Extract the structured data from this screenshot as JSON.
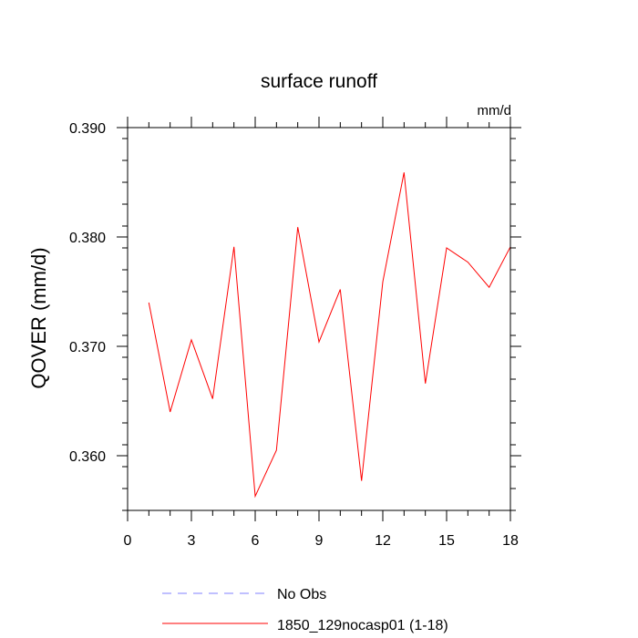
{
  "chart_data": {
    "type": "line",
    "title": "surface runoff",
    "units": "mm/d",
    "xlabel": "",
    "ylabel": "QOVER  (mm/d)",
    "xlim": [
      0,
      18
    ],
    "ylim": [
      0.355,
      0.39
    ],
    "x_ticks": [
      0,
      3,
      6,
      9,
      12,
      15,
      18
    ],
    "x_tick_labels": [
      "0",
      "3",
      "6",
      "9",
      "12",
      "15",
      "18"
    ],
    "y_ticks": [
      0.36,
      0.37,
      0.38,
      0.39
    ],
    "y_tick_labels": [
      "0.360",
      "0.370",
      "0.380",
      "0.390"
    ],
    "grid": false,
    "legend_position": "bottom",
    "series": [
      {
        "name": "No Obs",
        "color": "#8080ff",
        "style": "dashed",
        "x": [],
        "values": []
      },
      {
        "name": "1850_129nocasp01 (1-18)",
        "color": "#ff0000",
        "style": "solid",
        "x": [
          1,
          2,
          3,
          4,
          5,
          6,
          7,
          8,
          9,
          10,
          11,
          12,
          13,
          14,
          15,
          16,
          17,
          18
        ],
        "values": [
          0.374,
          0.364,
          0.3706,
          0.3652,
          0.3791,
          0.3563,
          0.3605,
          0.3809,
          0.3704,
          0.3752,
          0.3577,
          0.3759,
          0.3859,
          0.3666,
          0.379,
          0.3777,
          0.3754,
          0.3791
        ]
      }
    ]
  }
}
